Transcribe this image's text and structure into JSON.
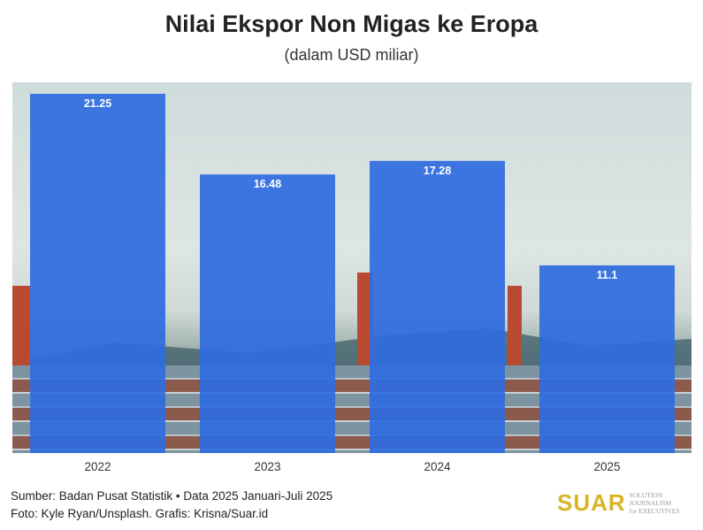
{
  "chart_data": {
    "type": "bar",
    "title": "Nilai Ekspor Non Migas ke Eropa",
    "subtitle": "(dalam USD miliar)",
    "categories": [
      "2022",
      "2023",
      "2024",
      "2025"
    ],
    "values": [
      21.25,
      16.48,
      17.28,
      11.1
    ],
    "value_labels": [
      "21.25",
      "16.48",
      "17.28",
      "11.1"
    ],
    "xlabel": "",
    "ylabel": "",
    "ylim": [
      0,
      22
    ],
    "grid": false,
    "bar_color": "#2f6be0"
  },
  "footer": {
    "source": "Sumber: Badan Pusat Statistik • Data 2025 Januari-Juli 2025",
    "credit": "Foto: Kyle Ryan/Unsplash. Grafis: Krisna/Suar.id"
  },
  "logo": {
    "name": "SUAR",
    "tagline1": "SOLUTION JOURNALISM",
    "tagline2": "for EXECUTIVES"
  }
}
